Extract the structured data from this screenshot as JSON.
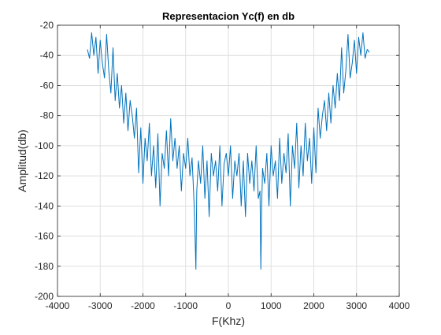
{
  "chart_data": {
    "type": "line",
    "title": "Representacion Yc(f) en db",
    "xlabel": "F(Khz)",
    "ylabel": "Amplitud(db)",
    "xlim": [
      -4000,
      4000
    ],
    "ylim": [
      -200,
      -20
    ],
    "xticks": [
      -4000,
      -3000,
      -2000,
      -1000,
      0,
      1000,
      2000,
      3000,
      4000
    ],
    "yticks": [
      -200,
      -180,
      -160,
      -140,
      -120,
      -100,
      -80,
      -60,
      -40,
      -20
    ],
    "xtick_labels": [
      "-4000",
      "-3000",
      "-2000",
      "-1000",
      "0",
      "1000",
      "2000",
      "3000",
      "4000"
    ],
    "ytick_labels": [
      "-200",
      "-180",
      "-160",
      "-140",
      "-120",
      "-100",
      "-80",
      "-60",
      "-40",
      "-20"
    ],
    "grid": true,
    "box": true,
    "series": [
      {
        "color": "#0072BD",
        "x": [
          -3300,
          -3250,
          -3200,
          -3150,
          -3100,
          -3050,
          -3000,
          -2950,
          -2900,
          -2850,
          -2800,
          -2750,
          -2700,
          -2650,
          -2600,
          -2550,
          -2500,
          -2450,
          -2400,
          -2350,
          -2300,
          -2250,
          -2200,
          -2150,
          -2100,
          -2050,
          -2000,
          -1950,
          -1900,
          -1850,
          -1800,
          -1750,
          -1700,
          -1650,
          -1600,
          -1550,
          -1500,
          -1450,
          -1400,
          -1350,
          -1300,
          -1250,
          -1200,
          -1150,
          -1100,
          -1050,
          -1000,
          -950,
          -900,
          -850,
          -800,
          -780,
          -760,
          -740,
          -700,
          -650,
          -600,
          -550,
          -500,
          -450,
          -400,
          -350,
          -300,
          -250,
          -200,
          -150,
          -100,
          -50,
          0,
          50,
          100,
          150,
          200,
          250,
          300,
          350,
          400,
          450,
          500,
          550,
          600,
          650,
          700,
          740,
          760,
          780,
          800,
          850,
          900,
          950,
          1000,
          1050,
          1100,
          1150,
          1200,
          1250,
          1300,
          1350,
          1400,
          1450,
          1500,
          1550,
          1600,
          1650,
          1700,
          1750,
          1800,
          1850,
          1900,
          1950,
          2000,
          2050,
          2100,
          2150,
          2200,
          2250,
          2300,
          2350,
          2400,
          2450,
          2500,
          2550,
          2600,
          2650,
          2700,
          2750,
          2800,
          2850,
          2900,
          2950,
          3000,
          3050,
          3100,
          3150,
          3200,
          3250,
          3300
        ],
        "y": [
          -36,
          -42,
          -25,
          -40,
          -28,
          -52,
          -30,
          -45,
          -55,
          -26,
          -50,
          -65,
          -35,
          -70,
          -52,
          -75,
          -60,
          -85,
          -65,
          -90,
          -70,
          -80,
          -95,
          -75,
          -118,
          -88,
          -125,
          -95,
          -110,
          -85,
          -120,
          -100,
          -128,
          -92,
          -140,
          -105,
          -115,
          -90,
          -120,
          -82,
          -110,
          -95,
          -115,
          -100,
          -130,
          -105,
          -115,
          -95,
          -120,
          -108,
          -140,
          -160,
          -182,
          -130,
          -110,
          -125,
          -100,
          -135,
          -110,
          -147,
          -105,
          -120,
          -110,
          -130,
          -100,
          -140,
          -112,
          -105,
          -120,
          -100,
          -135,
          -110,
          -120,
          -105,
          -140,
          -110,
          -147,
          -105,
          -125,
          -110,
          -130,
          -100,
          -135,
          -130,
          -182,
          -140,
          -115,
          -125,
          -105,
          -140,
          -100,
          -120,
          -110,
          -135,
          -95,
          -125,
          -105,
          -118,
          -92,
          -140,
          -100,
          -115,
          -85,
          -128,
          -100,
          -120,
          -85,
          -110,
          -95,
          -125,
          -88,
          -118,
          -75,
          -95,
          -80,
          -70,
          -90,
          -65,
          -85,
          -60,
          -75,
          -52,
          -70,
          -35,
          -65,
          -50,
          -26,
          -55,
          -45,
          -30,
          -52,
          -28,
          -40,
          -25,
          -42,
          -36,
          -38
        ]
      }
    ]
  }
}
